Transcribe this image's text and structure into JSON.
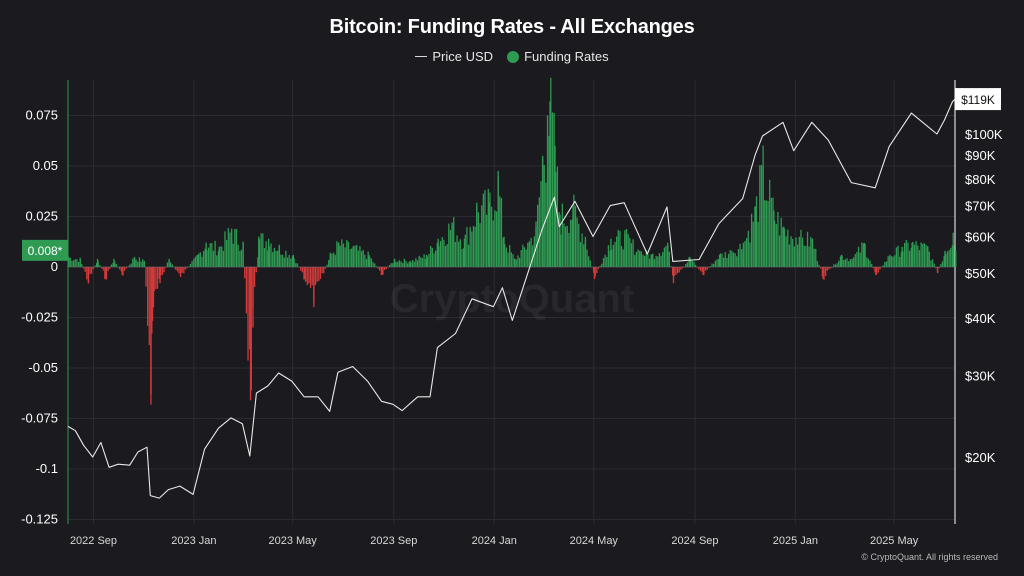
{
  "title": "Bitcoin: Funding Rates - All Exchanges",
  "legend": {
    "price_label": "Price USD",
    "funding_label": "Funding Rates"
  },
  "watermark": "CryptoQuant",
  "copyright": "© CryptoQuant. All rights reserved",
  "colors": {
    "background": "#1b1a1f",
    "price_line": "#e8e8e8",
    "funding_positive": "#2e9a52",
    "funding_negative": "#d23a3a",
    "grid": "#2c2b31",
    "axis_line_left": "#2e9a52",
    "axis_line_right": "#ffffff"
  },
  "chart_data": {
    "type": "line",
    "x_tick_labels": [
      "2022 Sep",
      "2023 Jan",
      "2023 May",
      "2023 Sep",
      "2024 Jan",
      "2024 May",
      "2024 Sep",
      "2025 Jan",
      "2025 May"
    ],
    "x_tick_dates": [
      "2022-09",
      "2023-01",
      "2023-05",
      "2023-09",
      "2024-01",
      "2024-05",
      "2024-09",
      "2025-01",
      "2025-05"
    ],
    "x_range": [
      "2022-08",
      "2025-07-14"
    ],
    "left_axis": {
      "ticks": [
        0.075,
        0.05,
        0.025,
        0,
        -0.025,
        -0.05,
        -0.075,
        -0.1,
        -0.125
      ],
      "tick_labels": [
        "0.075",
        "0.05",
        "0.025",
        "0",
        "-0.025",
        "-0.05",
        "-0.075",
        "-0.1",
        "-0.125"
      ],
      "range": [
        -0.125,
        0.085
      ],
      "current_value_label": "0.008*"
    },
    "right_axis": {
      "scale": "log",
      "ticks": [
        100000,
        90000,
        80000,
        70000,
        60000,
        50000,
        40000,
        30000,
        20000
      ],
      "tick_labels": [
        "$100K",
        "$90K",
        "$80K",
        "$70K",
        "$60K",
        "$50K",
        "$40K",
        "$30K",
        "$20K"
      ],
      "current_value_label": "$119K"
    },
    "grid": true,
    "series": [
      {
        "name": "Price USD",
        "axis": "right",
        "points": [
          [
            "2022-08-01",
            23300
          ],
          [
            "2022-08-10",
            22800
          ],
          [
            "2022-08-20",
            21200
          ],
          [
            "2022-08-31",
            20000
          ],
          [
            "2022-09-10",
            21500
          ],
          [
            "2022-09-20",
            19000
          ],
          [
            "2022-10-01",
            19300
          ],
          [
            "2022-10-15",
            19200
          ],
          [
            "2022-10-25",
            20500
          ],
          [
            "2022-11-05",
            21000
          ],
          [
            "2022-11-09",
            16500
          ],
          [
            "2022-11-20",
            16300
          ],
          [
            "2022-12-01",
            17000
          ],
          [
            "2022-12-15",
            17300
          ],
          [
            "2022-12-31",
            16600
          ],
          [
            "2023-01-14",
            20800
          ],
          [
            "2023-01-31",
            23100
          ],
          [
            "2023-02-15",
            24300
          ],
          [
            "2023-03-01",
            23600
          ],
          [
            "2023-03-10",
            20100
          ],
          [
            "2023-03-18",
            27500
          ],
          [
            "2023-04-01",
            28500
          ],
          [
            "2023-04-14",
            30400
          ],
          [
            "2023-04-30",
            29200
          ],
          [
            "2023-05-15",
            27000
          ],
          [
            "2023-06-01",
            27000
          ],
          [
            "2023-06-15",
            25100
          ],
          [
            "2023-06-25",
            30500
          ],
          [
            "2023-07-13",
            31400
          ],
          [
            "2023-07-31",
            29200
          ],
          [
            "2023-08-17",
            26400
          ],
          [
            "2023-08-31",
            26000
          ],
          [
            "2023-09-11",
            25200
          ],
          [
            "2023-09-30",
            27000
          ],
          [
            "2023-10-15",
            27000
          ],
          [
            "2023-10-24",
            34500
          ],
          [
            "2023-11-15",
            37000
          ],
          [
            "2023-12-05",
            44000
          ],
          [
            "2023-12-31",
            42300
          ],
          [
            "2024-01-11",
            46500
          ],
          [
            "2024-01-23",
            39500
          ],
          [
            "2024-02-14",
            52000
          ],
          [
            "2024-02-28",
            62000
          ],
          [
            "2024-03-14",
            73000
          ],
          [
            "2024-03-20",
            63000
          ],
          [
            "2024-04-08",
            71500
          ],
          [
            "2024-04-30",
            60000
          ],
          [
            "2024-05-21",
            70000
          ],
          [
            "2024-06-07",
            71000
          ],
          [
            "2024-07-05",
            55000
          ],
          [
            "2024-07-29",
            69500
          ],
          [
            "2024-08-05",
            53000
          ],
          [
            "2024-09-06",
            53500
          ],
          [
            "2024-09-30",
            64000
          ],
          [
            "2024-10-29",
            72500
          ],
          [
            "2024-11-13",
            90000
          ],
          [
            "2024-11-22",
            99000
          ],
          [
            "2024-12-17",
            106000
          ],
          [
            "2024-12-30",
            92000
          ],
          [
            "2025-01-21",
            106000
          ],
          [
            "2025-02-10",
            97000
          ],
          [
            "2025-03-10",
            78500
          ],
          [
            "2025-04-08",
            76500
          ],
          [
            "2025-04-25",
            94000
          ],
          [
            "2025-05-22",
            111000
          ],
          [
            "2025-06-22",
            100000
          ],
          [
            "2025-07-01",
            107000
          ],
          [
            "2025-07-11",
            117500
          ],
          [
            "2025-07-14",
            119000
          ]
        ]
      },
      {
        "name": "Funding Rates",
        "axis": "left",
        "points": [
          [
            "2022-08-01",
            0.005
          ],
          [
            "2022-08-15",
            0.004
          ],
          [
            "2022-08-25",
            -0.008
          ],
          [
            "2022-09-05",
            0.004
          ],
          [
            "2022-09-15",
            -0.006
          ],
          [
            "2022-09-25",
            0.004
          ],
          [
            "2022-10-05",
            -0.004
          ],
          [
            "2022-10-20",
            0.005
          ],
          [
            "2022-11-01",
            0.003
          ],
          [
            "2022-11-09",
            -0.063
          ],
          [
            "2022-11-10",
            -0.033
          ],
          [
            "2022-11-12",
            -0.02
          ],
          [
            "2022-11-20",
            -0.008
          ],
          [
            "2022-12-01",
            0.004
          ],
          [
            "2022-12-15",
            -0.005
          ],
          [
            "2023-01-05",
            0.006
          ],
          [
            "2023-01-15",
            0.012
          ],
          [
            "2023-01-31",
            0.01
          ],
          [
            "2023-02-15",
            0.019
          ],
          [
            "2023-03-01",
            0.012
          ],
          [
            "2023-03-10",
            -0.066
          ],
          [
            "2023-03-13",
            -0.03
          ],
          [
            "2023-03-20",
            0.015
          ],
          [
            "2023-04-01",
            0.014
          ],
          [
            "2023-04-14",
            0.01
          ],
          [
            "2023-05-01",
            0.006
          ],
          [
            "2023-05-15",
            -0.006
          ],
          [
            "2023-05-26",
            -0.017
          ],
          [
            "2023-06-15",
            0.006
          ],
          [
            "2023-06-25",
            0.012
          ],
          [
            "2023-07-13",
            0.01
          ],
          [
            "2023-08-01",
            0.006
          ],
          [
            "2023-08-17",
            -0.004
          ],
          [
            "2023-09-01",
            0.004
          ],
          [
            "2023-09-20",
            0.003
          ],
          [
            "2023-10-10",
            0.006
          ],
          [
            "2023-10-24",
            0.014
          ],
          [
            "2023-11-10",
            0.022
          ],
          [
            "2023-11-25",
            0.014
          ],
          [
            "2023-12-10",
            0.03
          ],
          [
            "2023-12-25",
            0.032
          ],
          [
            "2024-01-05",
            0.045
          ],
          [
            "2024-01-12",
            0.015
          ],
          [
            "2024-01-25",
            0.004
          ],
          [
            "2024-02-10",
            0.012
          ],
          [
            "2024-02-20",
            0.02
          ],
          [
            "2024-02-28",
            0.055
          ],
          [
            "2024-03-05",
            0.075
          ],
          [
            "2024-03-08",
            0.082
          ],
          [
            "2024-03-14",
            0.06
          ],
          [
            "2024-03-20",
            0.026
          ],
          [
            "2024-04-05",
            0.03
          ],
          [
            "2024-04-20",
            0.015
          ],
          [
            "2024-05-01",
            -0.006
          ],
          [
            "2024-05-21",
            0.014
          ],
          [
            "2024-06-07",
            0.016
          ],
          [
            "2024-06-25",
            0.008
          ],
          [
            "2024-07-10",
            0.006
          ],
          [
            "2024-07-29",
            0.012
          ],
          [
            "2024-08-05",
            -0.008
          ],
          [
            "2024-08-25",
            0.005
          ],
          [
            "2024-09-10",
            -0.004
          ],
          [
            "2024-09-30",
            0.006
          ],
          [
            "2024-10-15",
            0.008
          ],
          [
            "2024-10-29",
            0.012
          ],
          [
            "2024-11-13",
            0.03
          ],
          [
            "2024-11-22",
            0.05
          ],
          [
            "2024-12-05",
            0.028
          ],
          [
            "2024-12-17",
            0.02
          ],
          [
            "2025-01-05",
            0.015
          ],
          [
            "2025-01-21",
            0.014
          ],
          [
            "2025-02-03",
            -0.006
          ],
          [
            "2025-02-25",
            0.006
          ],
          [
            "2025-03-10",
            0.004
          ],
          [
            "2025-03-25",
            0.012
          ],
          [
            "2025-04-08",
            -0.004
          ],
          [
            "2025-04-25",
            0.006
          ],
          [
            "2025-05-10",
            0.01
          ],
          [
            "2025-05-22",
            0.012
          ],
          [
            "2025-06-10",
            0.01
          ],
          [
            "2025-06-22",
            -0.003
          ],
          [
            "2025-07-01",
            0.008
          ],
          [
            "2025-07-11",
            0.017
          ],
          [
            "2025-07-14",
            0.008
          ]
        ]
      }
    ]
  }
}
